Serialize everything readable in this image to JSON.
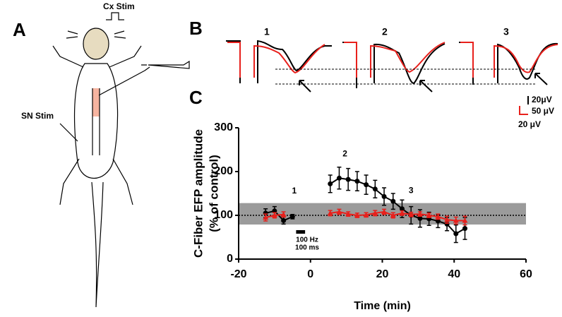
{
  "figure": {
    "panel_a": {
      "label": "A",
      "cx_stim": "Cx Stim",
      "sn_stim": "SN Stim"
    },
    "panel_b": {
      "label": "B",
      "trace_labels": [
        "1",
        "2",
        "3"
      ],
      "scale_black": "20μV",
      "scale_red": "50 μV",
      "scale_red2": "20 μV"
    },
    "panel_c": {
      "label": "C"
    }
  },
  "chart_data": {
    "type": "line",
    "xlabel": "Time (min)",
    "ylabel": [
      "C-Fiber EFP amplitude",
      "(% of control)"
    ],
    "xlim": [
      -20,
      60
    ],
    "xticks": [
      -20,
      0,
      20,
      40,
      60
    ],
    "ylim": [
      0,
      300
    ],
    "yticks": [
      0,
      100,
      200,
      300
    ],
    "reference_line": 100,
    "shaded_range": [
      79,
      128
    ],
    "stimulus": {
      "label": [
        "100 Hz",
        "100 ms"
      ],
      "x": [
        -4,
        -1.5
      ]
    },
    "annotations": [
      {
        "text": "1",
        "x": -4.5,
        "y": 155
      },
      {
        "text": "2",
        "x": 9.6,
        "y": 240
      },
      {
        "text": "3",
        "x": 28,
        "y": 156
      }
    ],
    "series": [
      {
        "color": "#000000",
        "x": [
          -12.5,
          -10,
          -7.5,
          -5,
          5.5,
          8,
          10.5,
          13,
          15.5,
          18,
          20.5,
          23,
          25.5,
          28,
          30.5,
          33,
          35.5,
          38,
          40.5,
          43
        ],
        "values": [
          105,
          110,
          88,
          97,
          172,
          185,
          182,
          178,
          170,
          160,
          143,
          132,
          115,
          100,
          93,
          92,
          87,
          80,
          58,
          70
        ],
        "errors": [
          10,
          10,
          8,
          5,
          20,
          25,
          25,
          22,
          22,
          20,
          20,
          18,
          20,
          20,
          20,
          15,
          15,
          15,
          20,
          25
        ]
      },
      {
        "color": "#e8201c",
        "x": [
          -12.5,
          -10,
          -7.5,
          5.5,
          8,
          10.5,
          13,
          15.5,
          18,
          20.5,
          23,
          25.5,
          28,
          30.5,
          33,
          35.5,
          38,
          40.5,
          43
        ],
        "values": [
          95,
          100,
          102,
          105,
          108,
          103,
          100,
          101,
          105,
          108,
          100,
          105,
          102,
          103,
          100,
          97,
          90,
          88,
          88
        ],
        "errors": [
          8,
          6,
          6,
          6,
          6,
          5,
          5,
          5,
          6,
          6,
          6,
          5,
          5,
          5,
          5,
          6,
          8,
          8,
          10
        ]
      }
    ]
  }
}
